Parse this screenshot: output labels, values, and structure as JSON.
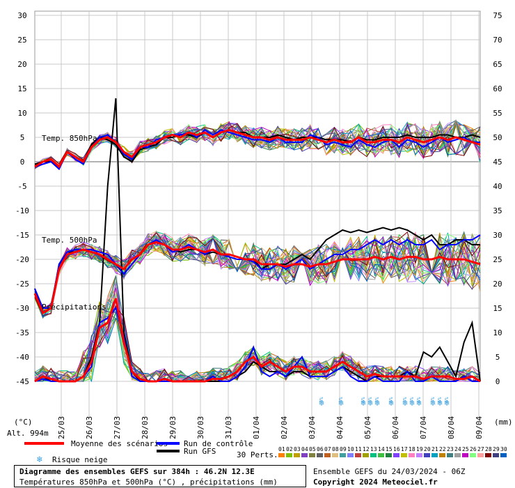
{
  "chart_data": {
    "type": "line",
    "title": "Diagramme des ensembles GEFS sur 384h : 46.2N 12.3E",
    "subtitle": "Températures 850hPa et 500hPa (°C) , précipitations (mm)",
    "y_left_label": "(°C)",
    "y_right_label": "(mm)",
    "y_left_range": [
      -45,
      30
    ],
    "y_right_range": [
      0,
      75
    ],
    "y_left_ticks": [
      30,
      25,
      20,
      15,
      10,
      5,
      0,
      -5,
      -10,
      -15,
      -20,
      -25,
      -30,
      -35,
      -40,
      -45
    ],
    "y_right_ticks": [
      75,
      70,
      65,
      60,
      55,
      50,
      45,
      40,
      35,
      30,
      25,
      20,
      15,
      10,
      5,
      0
    ],
    "x_ticks": [
      "25/03",
      "26/03",
      "27/03",
      "28/03",
      "29/03",
      "30/03",
      "31/03",
      "01/04",
      "02/04",
      "03/04",
      "04/04",
      "05/04",
      "06/04",
      "07/04",
      "08/04",
      "09/04"
    ],
    "altitude_label": "Alt. 994m",
    "section_labels": [
      "Temp. 850hPa",
      "Temp. 500hPa",
      "Précipitations"
    ],
    "series": [
      {
        "name": "Moyenne des scénarios",
        "color": "#ff0000",
        "t850": [
          -1,
          0,
          0.5,
          -1,
          2,
          1,
          0,
          3,
          4.5,
          5,
          4,
          2,
          1,
          3,
          3.5,
          4,
          5,
          5.5,
          5,
          6,
          5.5,
          6,
          5,
          6,
          6.5,
          6,
          5.5,
          5,
          5,
          4.5,
          5,
          4.5,
          4.5,
          4.5,
          5,
          4.5,
          4,
          4.5,
          4,
          4,
          5,
          4,
          4,
          4.5,
          4.5,
          4,
          5,
          4.5,
          4,
          4.5,
          5,
          4.5,
          5,
          4.5,
          4,
          3.5
        ],
        "t500": [
          -27,
          -31,
          -30,
          -22,
          -19,
          -18.5,
          -18,
          -18.5,
          -19,
          -20,
          -21,
          -22,
          -20,
          -19,
          -17,
          -16.5,
          -17,
          -18,
          -18,
          -17.5,
          -18,
          -18.5,
          -18,
          -19,
          -19,
          -19.5,
          -20,
          -20,
          -21,
          -21,
          -21,
          -21.5,
          -21,
          -21,
          -21.5,
          -21,
          -21,
          -20.5,
          -20,
          -20,
          -20,
          -20,
          -19.5,
          -20,
          -19.5,
          -20,
          -19.5,
          -19.5,
          -20,
          -20,
          -19.5,
          -20,
          -20,
          -20,
          -20.5,
          -21
        ],
        "precip": [
          0,
          1,
          0.5,
          0,
          0,
          0,
          1,
          4,
          11,
          12,
          17,
          8,
          2,
          0.5,
          0,
          0,
          0.5,
          0,
          0,
          0,
          0,
          0,
          0.5,
          0.5,
          1,
          2,
          4,
          5,
          3,
          4,
          3,
          2,
          3,
          3,
          2,
          2,
          2,
          3,
          4,
          3,
          2,
          1,
          1.5,
          1,
          1,
          1,
          1,
          1,
          0.5,
          1,
          1,
          1,
          0.5,
          0.5,
          1,
          0
        ]
      },
      {
        "name": "Run de contrôle",
        "color": "#0000ff",
        "t850": [
          -1,
          -0.5,
          0,
          -1.5,
          2,
          0.5,
          -0.5,
          3,
          5,
          5.5,
          4,
          1.5,
          0.5,
          3,
          3,
          4.5,
          5,
          5.5,
          5.5,
          6,
          5,
          6.5,
          5.5,
          6.5,
          6,
          5.5,
          5,
          4.5,
          4.5,
          4,
          5,
          4,
          4,
          4,
          5.5,
          5,
          3.5,
          4,
          3.5,
          3,
          4.5,
          3.5,
          3,
          4,
          4.5,
          3,
          4.5,
          4,
          3,
          4,
          5,
          4,
          4.5,
          5,
          4,
          4
        ],
        "t500": [
          -26,
          -30,
          -30,
          -21,
          -18.5,
          -18,
          -18,
          -18,
          -18.5,
          -19,
          -21,
          -23,
          -21,
          -19,
          -17,
          -16,
          -17,
          -18.5,
          -18,
          -17,
          -18,
          -19,
          -18,
          -19,
          -19.5,
          -20,
          -20,
          -20.5,
          -22,
          -22,
          -21,
          -22,
          -21,
          -20,
          -22,
          -21,
          -20,
          -19,
          -19,
          -18,
          -18,
          -17,
          -16,
          -17,
          -16,
          -17,
          -16,
          -17,
          -17,
          -16,
          -18,
          -17,
          -17,
          -16,
          -16,
          -15
        ],
        "precip": [
          0,
          0.5,
          0,
          0,
          0,
          0,
          1,
          3,
          12,
          13,
          15,
          9,
          1,
          0,
          0,
          0,
          0,
          0,
          0,
          0,
          0,
          0,
          1,
          0,
          0,
          1,
          3,
          7,
          2,
          1,
          2,
          1,
          3,
          5,
          1,
          1,
          1,
          2,
          3,
          1,
          0,
          0,
          1,
          0,
          0,
          0,
          2,
          0,
          0,
          1,
          0,
          0,
          0,
          1,
          0,
          0
        ]
      },
      {
        "name": "Run GFS",
        "color": "#000000",
        "t850": [
          -0.5,
          0,
          0,
          -1,
          2,
          1,
          0,
          3.5,
          5,
          4.5,
          3.5,
          1,
          0,
          2.5,
          3,
          3.5,
          5,
          5,
          5.5,
          5.5,
          5,
          6,
          5,
          6,
          6.5,
          6,
          6,
          5,
          5,
          5,
          5.5,
          5,
          4.5,
          5,
          5,
          5,
          4.5,
          4.5,
          4.5,
          4,
          5,
          4.5,
          4.5,
          5,
          5,
          5,
          5.5,
          5,
          5,
          5,
          5.5,
          5.5,
          5,
          5,
          5.5,
          5
        ],
        "t500": [
          -26,
          -31,
          -30,
          -21,
          -18.5,
          -18.5,
          -18,
          -18.5,
          -19,
          -20,
          -21,
          -22,
          -20,
          -19,
          -17,
          -16.5,
          -17,
          -18,
          -18.5,
          -18,
          -18,
          -19,
          -18.5,
          -19,
          -19,
          -19.5,
          -20,
          -20,
          -22,
          -21,
          -21,
          -21,
          -20,
          -19,
          -20,
          -18,
          -16,
          -15,
          -14,
          -14.5,
          -14,
          -14.5,
          -14,
          -13.5,
          -14,
          -13.5,
          -14,
          -15,
          -16,
          -15,
          -17,
          -17,
          -16,
          -16,
          -17,
          -17
        ],
        "precip": [
          0,
          1,
          0,
          0,
          0,
          0,
          1,
          5,
          12,
          40,
          58,
          10,
          2,
          0,
          0,
          0,
          0,
          0,
          0,
          0,
          0,
          0,
          0,
          0,
          0,
          1,
          2,
          4,
          3,
          2,
          2,
          1,
          2,
          2,
          1,
          1,
          1,
          2,
          3,
          2,
          1,
          0,
          1,
          1,
          1,
          1,
          2,
          1,
          6,
          5,
          7,
          4,
          1,
          8,
          12,
          0
        ]
      }
    ],
    "legend": {
      "mean": "Moyenne des scénarios",
      "control": "Run de contrôle",
      "gfs": "Run GFS",
      "snow": "Risque neige",
      "perts_label": "30 Perts.",
      "pert_numbers": [
        "01",
        "02",
        "03",
        "04",
        "05",
        "06",
        "07",
        "08",
        "09",
        "10",
        "11",
        "12",
        "13",
        "14",
        "15",
        "16",
        "17",
        "18",
        "19",
        "20",
        "21",
        "22",
        "23",
        "24",
        "25",
        "26",
        "27",
        "28",
        "29",
        "30"
      ],
      "pert_colors": [
        "#ff8000",
        "#80c000",
        "#c0a000",
        "#8040c0",
        "#808040",
        "#606060",
        "#c06020",
        "#e0c080",
        "#40a0a0",
        "#8080ff",
        "#c04040",
        "#a0a000",
        "#00c080",
        "#40c040",
        "#208040",
        "#8040ff",
        "#c0c000",
        "#ff80c0",
        "#c080ff",
        "#4040c0",
        "#00a0c0",
        "#c08000",
        "#408080",
        "#a0a0a0",
        "#c000c0",
        "#80ff80",
        "#ffa0a0",
        "#800000",
        "#404080",
        "#0060c0"
      ]
    },
    "snow_markers": [
      {
        "date_index": 10.3,
        "label": "3%"
      },
      {
        "date_index": 11.0,
        "label": "3%"
      },
      {
        "date_index": 11.8,
        "label": "6%"
      },
      {
        "date_index": 12.05,
        "label": "3%"
      },
      {
        "date_index": 12.3,
        "label": "3%"
      },
      {
        "date_index": 12.8,
        "label": "6%"
      },
      {
        "date_index": 13.3,
        "label": "3%"
      },
      {
        "date_index": 13.55,
        "label": "3%"
      },
      {
        "date_index": 13.8,
        "label": "6%"
      },
      {
        "date_index": 14.3,
        "label": "3%"
      },
      {
        "date_index": 14.55,
        "label": "6%"
      },
      {
        "date_index": 14.8,
        "label": "6%"
      }
    ]
  },
  "footer": {
    "title": "Diagramme des ensembles GEFS sur 384h : 46.2N 12.3E",
    "subtitle": "Températures 850hPa et 500hPa (°C) , précipitations (mm)",
    "run_info": "Ensemble GEFS du 24/03/2024 - 06Z",
    "copyright": "Copyright 2024 Meteociel.fr"
  },
  "colors": {
    "mean": "#ff0000",
    "control": "#0000ff",
    "gfs": "#000000",
    "grid": "#c8c8c8",
    "snow": "#3aa0e0"
  }
}
